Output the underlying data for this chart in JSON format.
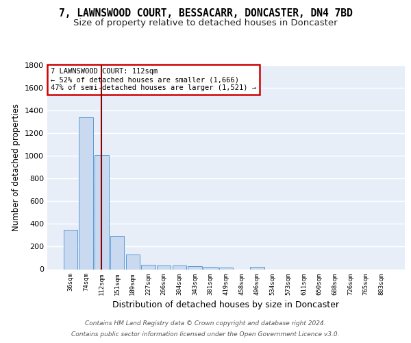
{
  "title": "7, LAWNSWOOD COURT, BESSACARR, DONCASTER, DN4 7BD",
  "subtitle": "Size of property relative to detached houses in Doncaster",
  "xlabel": "Distribution of detached houses by size in Doncaster",
  "ylabel": "Number of detached properties",
  "categories": [
    "36sqm",
    "74sqm",
    "112sqm",
    "151sqm",
    "189sqm",
    "227sqm",
    "266sqm",
    "304sqm",
    "343sqm",
    "381sqm",
    "419sqm",
    "458sqm",
    "496sqm",
    "534sqm",
    "573sqm",
    "611sqm",
    "650sqm",
    "688sqm",
    "726sqm",
    "765sqm",
    "803sqm"
  ],
  "values": [
    350,
    1340,
    1010,
    295,
    130,
    40,
    35,
    35,
    25,
    20,
    15,
    0,
    20,
    0,
    0,
    0,
    0,
    0,
    0,
    0,
    0
  ],
  "bar_color": "#c8d9f0",
  "bar_edge_color": "#5b9bd5",
  "highlight_bar_index": 2,
  "highlight_line_color": "#8b0000",
  "ylim": [
    0,
    1800
  ],
  "yticks": [
    0,
    200,
    400,
    600,
    800,
    1000,
    1200,
    1400,
    1600,
    1800
  ],
  "annotation_text": "7 LAWNSWOOD COURT: 112sqm\n← 52% of detached houses are smaller (1,666)\n47% of semi-detached houses are larger (1,521) →",
  "annotation_box_color": "#ffffff",
  "annotation_box_edge": "#cc0000",
  "bg_color": "#e8eef8",
  "footnote_line1": "Contains HM Land Registry data © Crown copyright and database right 2024.",
  "footnote_line2": "Contains public sector information licensed under the Open Government Licence v3.0.",
  "title_fontsize": 10.5,
  "subtitle_fontsize": 9.5,
  "ylabel_fontsize": 8.5,
  "xlabel_fontsize": 9
}
